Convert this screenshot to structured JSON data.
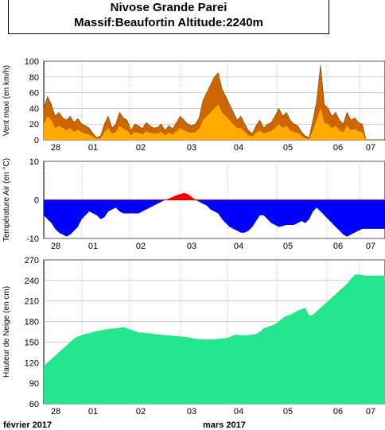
{
  "header": {
    "title_line1": "Nivose Grande Parei",
    "title_line2": "Massif:Beaufortin Altitude:2240m"
  },
  "x_axis": {
    "day_labels": [
      "28",
      "01",
      "02",
      "03",
      "04",
      "05",
      "06",
      "07"
    ],
    "month_labels": [
      "février 2017",
      "mars 2017"
    ]
  },
  "colors": {
    "wind_max": "#cc6600",
    "wind_mean": "#ffaa00",
    "temp_neg": "#0000ff",
    "temp_pos": "#ff0000",
    "snow": "#22e58c"
  },
  "chart_data": [
    {
      "type": "area",
      "ylabel": "Vent maxi (en km/h)",
      "ylim": [
        0,
        100
      ],
      "yticks": [
        0,
        20,
        40,
        60,
        80,
        100
      ],
      "grid": true,
      "x": [
        0,
        0.1,
        0.2,
        0.3,
        0.4,
        0.5,
        0.6,
        0.7,
        0.8,
        0.9,
        1.0,
        1.1,
        1.2,
        1.3,
        1.4,
        1.5,
        1.6,
        1.7,
        1.8,
        1.9,
        2.0,
        2.1,
        2.2,
        2.3,
        2.4,
        2.5,
        2.6,
        2.7,
        2.8,
        2.9,
        3.0,
        3.1,
        3.2,
        3.3,
        3.4,
        3.5,
        3.6,
        3.7,
        3.8,
        3.9,
        4.0,
        4.1,
        4.2,
        4.3,
        4.4,
        4.5,
        4.6,
        4.7,
        4.8,
        4.9,
        5.0,
        5.1,
        5.2,
        5.3,
        5.4,
        5.5,
        5.6,
        5.7,
        5.8,
        5.9,
        6.0,
        6.1,
        6.2,
        6.3,
        6.4,
        6.5,
        6.6,
        6.7,
        6.8,
        6.9,
        7.0,
        7.1,
        7.2,
        7.3,
        7.4,
        7.5,
        7.6,
        7.7,
        7.8,
        7.9,
        8.0,
        8.1,
        8.2,
        8.3,
        8.4,
        8.5,
        8.6,
        8.7,
        8.8,
        8.9,
        9.0
      ],
      "series": [
        {
          "values": [
            40,
            55,
            45,
            30,
            35,
            28,
            25,
            30,
            22,
            27,
            20,
            18,
            15,
            8,
            3,
            5,
            20,
            30,
            15,
            20,
            35,
            28,
            25,
            12,
            20,
            18,
            14,
            22,
            18,
            15,
            16,
            20,
            12,
            18,
            14,
            22,
            30,
            25,
            20,
            18,
            20,
            28,
            50,
            60,
            70,
            80,
            85,
            65,
            55,
            45,
            35,
            25,
            30,
            20,
            12,
            8,
            18,
            25,
            15,
            20,
            22,
            30,
            40,
            30,
            35,
            25,
            20,
            18,
            10,
            5,
            3,
            25,
            50,
            95,
            45,
            40,
            30,
            35,
            25,
            20,
            35,
            25,
            28,
            22,
            20,
            0,
            0,
            0,
            0,
            0,
            0
          ]
        },
        {
          "values": [
            20,
            30,
            25,
            15,
            18,
            15,
            12,
            15,
            10,
            13,
            10,
            8,
            7,
            4,
            1,
            2,
            10,
            15,
            8,
            10,
            18,
            14,
            12,
            6,
            10,
            9,
            7,
            11,
            9,
            8,
            8,
            10,
            6,
            9,
            7,
            11,
            15,
            12,
            10,
            9,
            10,
            14,
            25,
            30,
            35,
            40,
            45,
            35,
            30,
            25,
            20,
            15,
            15,
            10,
            6,
            4,
            9,
            12,
            8,
            10,
            11,
            15,
            20,
            15,
            18,
            12,
            10,
            9,
            5,
            2,
            1,
            12,
            25,
            40,
            22,
            20,
            15,
            18,
            12,
            10,
            18,
            12,
            14,
            11,
            10,
            0,
            0,
            0,
            0,
            0,
            0
          ]
        }
      ]
    },
    {
      "type": "area",
      "ylabel": "Température Air (en °C)",
      "ylim": [
        -10,
        10
      ],
      "yticks": [
        -10,
        0,
        10
      ],
      "grid": true,
      "x": [
        0,
        0.1,
        0.2,
        0.3,
        0.4,
        0.5,
        0.6,
        0.7,
        0.8,
        0.9,
        1.0,
        1.1,
        1.2,
        1.3,
        1.4,
        1.5,
        1.6,
        1.7,
        1.8,
        1.9,
        2.0,
        2.1,
        2.2,
        2.3,
        2.4,
        2.5,
        2.6,
        2.7,
        2.8,
        2.9,
        3.0,
        3.1,
        3.2,
        3.3,
        3.4,
        3.5,
        3.6,
        3.7,
        3.8,
        3.9,
        4.0,
        4.1,
        4.2,
        4.3,
        4.4,
        4.5,
        4.6,
        4.7,
        4.8,
        4.9,
        5.0,
        5.1,
        5.2,
        5.3,
        5.4,
        5.5,
        5.6,
        5.7,
        5.8,
        5.9,
        6.0,
        6.1,
        6.2,
        6.3,
        6.4,
        6.5,
        6.6,
        6.7,
        6.8,
        6.9,
        7.0,
        7.1,
        7.2,
        7.3,
        7.4,
        7.5,
        7.6,
        7.7,
        7.8,
        7.9,
        8.0,
        8.1,
        8.2,
        8.3,
        8.4,
        8.5,
        8.6,
        8.7,
        8.8,
        8.9,
        9.0
      ],
      "series": [
        {
          "values": [
            -4,
            -5,
            -6,
            -7.5,
            -8.5,
            -9,
            -9.5,
            -9,
            -8,
            -7,
            -5,
            -4,
            -3,
            -3.5,
            -4,
            -5,
            -4.5,
            -3,
            -2.5,
            -2,
            -3,
            -3.5,
            -3.5,
            -3.5,
            -3.5,
            -3.5,
            -3,
            -2.5,
            -2,
            -1.5,
            -1,
            -0.5,
            0,
            0.3,
            0.8,
            1.2,
            1.5,
            1.8,
            1.5,
            0.8,
            0,
            -0.5,
            -1,
            -1.5,
            -2.5,
            -3,
            -3.5,
            -5,
            -6,
            -7,
            -7.5,
            -8,
            -8.5,
            -8.5,
            -8,
            -7,
            -5.5,
            -4,
            -4,
            -5,
            -6,
            -6.5,
            -7,
            -6.8,
            -6.5,
            -6.5,
            -6.5,
            -6,
            -5.5,
            -6,
            -5,
            -3,
            -2,
            -3,
            -4,
            -5,
            -6,
            -7,
            -8,
            -9,
            -9.5,
            -9,
            -8.5,
            -8,
            -7.5,
            -7.5,
            -7.5,
            -7.5,
            -7.5,
            -7.5,
            -7.5
          ]
        }
      ]
    },
    {
      "type": "area",
      "ylabel": "Hauteur de Neige (en cm)",
      "ylim": [
        60,
        270
      ],
      "yticks": [
        60,
        90,
        120,
        150,
        180,
        210,
        240,
        270
      ],
      "grid": true,
      "x": [
        0,
        0.1,
        0.2,
        0.3,
        0.4,
        0.5,
        0.6,
        0.7,
        0.8,
        0.9,
        1.0,
        1.1,
        1.2,
        1.3,
        1.4,
        1.5,
        1.6,
        1.7,
        1.8,
        1.9,
        2.0,
        2.1,
        2.2,
        2.3,
        2.4,
        2.5,
        2.6,
        2.7,
        2.8,
        2.9,
        3.0,
        3.1,
        3.2,
        3.3,
        3.4,
        3.5,
        3.6,
        3.7,
        3.8,
        3.9,
        4.0,
        4.1,
        4.2,
        4.3,
        4.4,
        4.5,
        4.6,
        4.7,
        4.8,
        4.9,
        5.0,
        5.1,
        5.2,
        5.3,
        5.4,
        5.5,
        5.6,
        5.7,
        5.8,
        5.9,
        6.0,
        6.1,
        6.2,
        6.3,
        6.4,
        6.5,
        6.6,
        6.7,
        6.8,
        6.9,
        7.0,
        7.1,
        7.2,
        7.3,
        7.4,
        7.5,
        7.6,
        7.7,
        7.8,
        7.9,
        8.0,
        8.1,
        8.2,
        8.3,
        8.4,
        8.5,
        8.6,
        8.7,
        8.8,
        8.9,
        9.0
      ],
      "series": [
        {
          "values": [
            115,
            120,
            125,
            130,
            135,
            140,
            145,
            150,
            155,
            158,
            160,
            162,
            163,
            165,
            166,
            167,
            168,
            169,
            170,
            170,
            171,
            172,
            170,
            168,
            166,
            164,
            164,
            163,
            163,
            162,
            161,
            161,
            160,
            160,
            159,
            159,
            158,
            158,
            157,
            156,
            155,
            154,
            154,
            154,
            154,
            154,
            155,
            155,
            156,
            157,
            160,
            161,
            160,
            160,
            160,
            161,
            162,
            165,
            170,
            172,
            174,
            176,
            180,
            185,
            188,
            190,
            193,
            196,
            198,
            200,
            188,
            190,
            195,
            200,
            205,
            210,
            215,
            220,
            225,
            230,
            235,
            242,
            248,
            249,
            248,
            247,
            247,
            247,
            247,
            247,
            247
          ]
        }
      ]
    }
  ]
}
